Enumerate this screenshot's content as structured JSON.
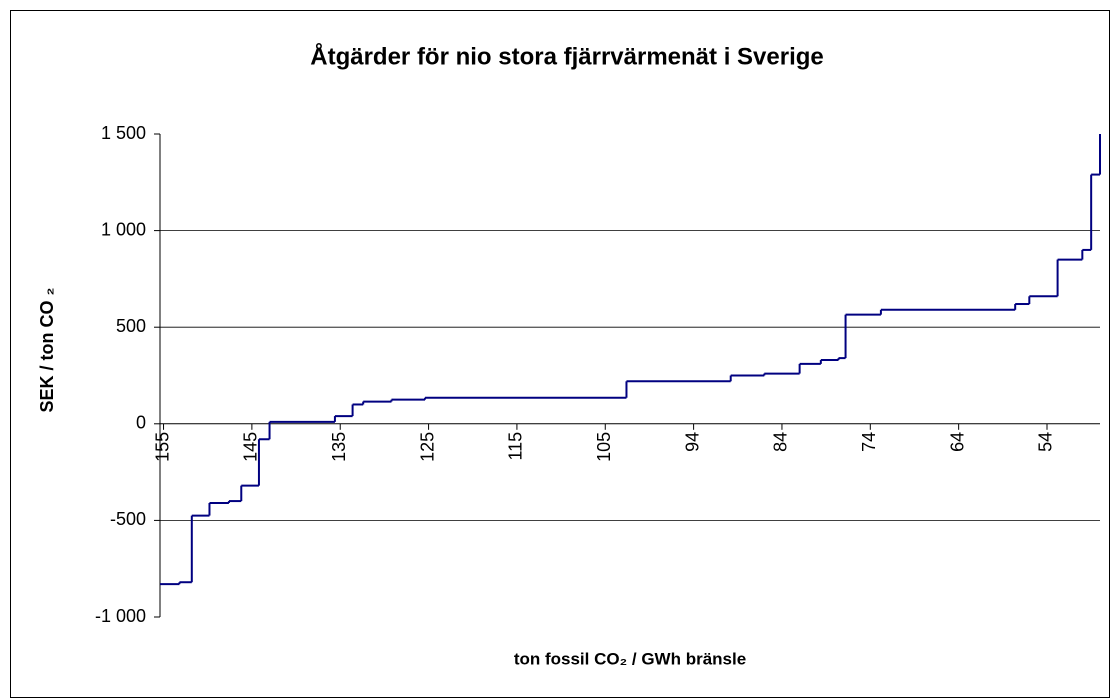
{
  "chart_data": {
    "type": "line",
    "step": "post",
    "title": "Åtgärder för nio stora fjärrvärmenät i Sverige",
    "x_label": "ton fossil CO₂ / GWh bränsle",
    "y_label": "SEK / ton CO ₂",
    "series": [
      {
        "color": "#000080",
        "x": [
          -0.2,
          0.9,
          1.6,
          2.6,
          3.7,
          4.4,
          5.4,
          6.0,
          9.7,
          10.7,
          11.3,
          12.9,
          14.8,
          26.2,
          32.1,
          34.0,
          36.0,
          37.2,
          38.2,
          38.6,
          40.6,
          48.2,
          49.0,
          50.6,
          52.0,
          52.5,
          53.0
        ],
        "values": [
          -830,
          -820,
          -475,
          -410,
          -400,
          -320,
          -80,
          10,
          40,
          100,
          115,
          125,
          135,
          220,
          250,
          260,
          310,
          330,
          340,
          565,
          590,
          620,
          660,
          850,
          900,
          1290,
          1500
        ]
      }
    ],
    "xlim": [
      -0.2,
      53
    ],
    "xticks": [
      {
        "value": 0,
        "label": "155"
      },
      {
        "value": 5,
        "label": "145"
      },
      {
        "value": 10,
        "label": "135"
      },
      {
        "value": 15,
        "label": "125"
      },
      {
        "value": 20,
        "label": "115"
      },
      {
        "value": 25,
        "label": "105"
      },
      {
        "value": 30,
        "label": "94"
      },
      {
        "value": 35,
        "label": "84"
      },
      {
        "value": 40,
        "label": "74"
      },
      {
        "value": 45,
        "label": "64"
      },
      {
        "value": 50,
        "label": "54"
      }
    ],
    "ylim": [
      -1000,
      1500
    ],
    "yticks": [
      {
        "value": 1500,
        "label": "1 500"
      },
      {
        "value": 1000,
        "label": "1 000"
      },
      500,
      0,
      -500,
      {
        "value": -1000,
        "label": "-1 000"
      }
    ],
    "grid": true
  }
}
